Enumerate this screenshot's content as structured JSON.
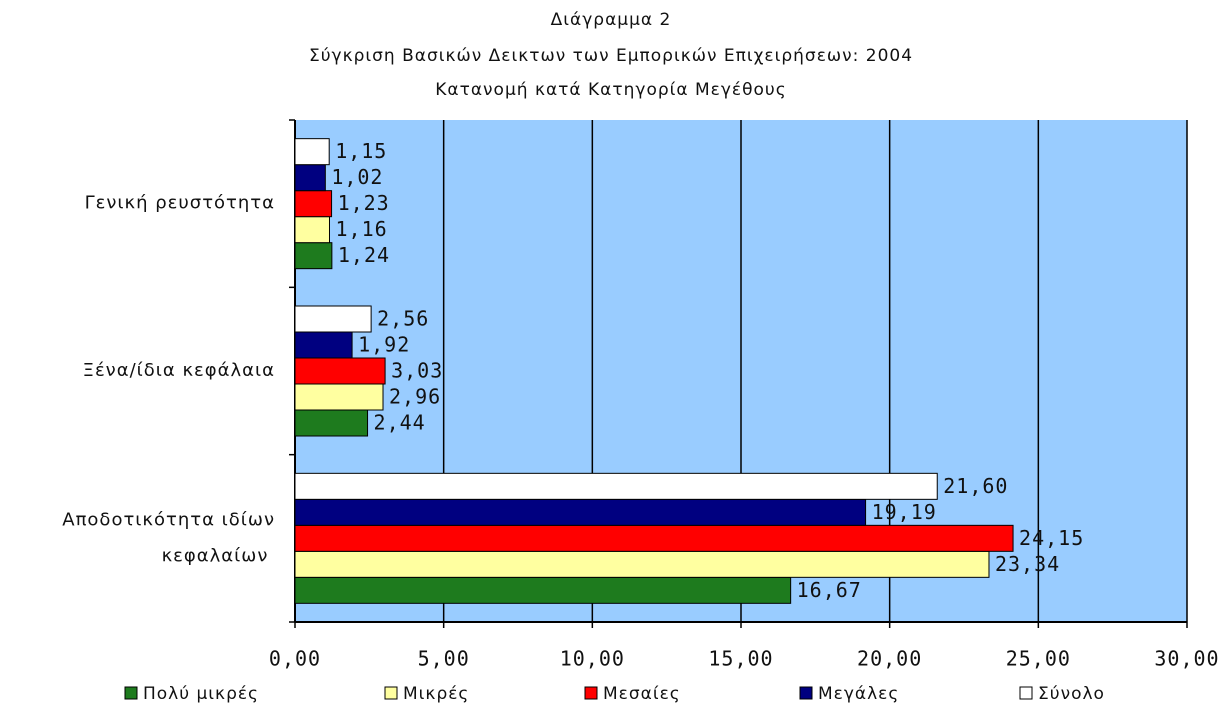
{
  "chart_data": {
    "type": "hbar",
    "title": "Διάγραμμα 2",
    "subtitle": [
      "Σύγκριση Βασικών Δεικτων των Εμπορικών Επιχειρήσεων: 2004",
      "Κατανομή κατά Κατηγορία Μεγέθους"
    ],
    "categories": [
      "Γενική ρευστότητα",
      "Ξένα/ίδια κεφάλαια",
      "Αποδοτικότητα ιδίων κεφαλαίων"
    ],
    "series": [
      {
        "name": "Πολύ μικρές",
        "color": "#1e7b1e",
        "values": [
          1.24,
          2.44,
          16.67
        ],
        "value_labels": [
          "1,24",
          "2,44",
          "16,67"
        ]
      },
      {
        "name": "Μικρές",
        "color": "#ffffa0",
        "values": [
          1.16,
          2.96,
          23.34
        ],
        "value_labels": [
          "1,16",
          "2,96",
          "23,34"
        ]
      },
      {
        "name": "Μεσαίες",
        "color": "#ff0000",
        "values": [
          1.23,
          3.03,
          24.15
        ],
        "value_labels": [
          "1,23",
          "3,03",
          "24,15"
        ]
      },
      {
        "name": "Μεγάλες",
        "color": "#000080",
        "values": [
          1.02,
          1.92,
          19.19
        ],
        "value_labels": [
          "1,02",
          "1,92",
          "19,19"
        ]
      },
      {
        "name": "Σύνολο",
        "color": "#ffffff",
        "values": [
          1.15,
          2.56,
          21.6
        ],
        "value_labels": [
          "1,15",
          "2,56",
          "21,60"
        ]
      }
    ],
    "xlim": [
      0,
      30
    ],
    "xticks": [
      {
        "value": 0,
        "label": "0,00"
      },
      {
        "value": 5,
        "label": "5,00"
      },
      {
        "value": 10,
        "label": "10,00"
      },
      {
        "value": 15,
        "label": "15,00"
      },
      {
        "value": 20,
        "label": "20,00"
      },
      {
        "value": 25,
        "label": "25,00"
      },
      {
        "value": 30,
        "label": "30,00"
      }
    ],
    "grid": true,
    "legend": "bottom"
  }
}
